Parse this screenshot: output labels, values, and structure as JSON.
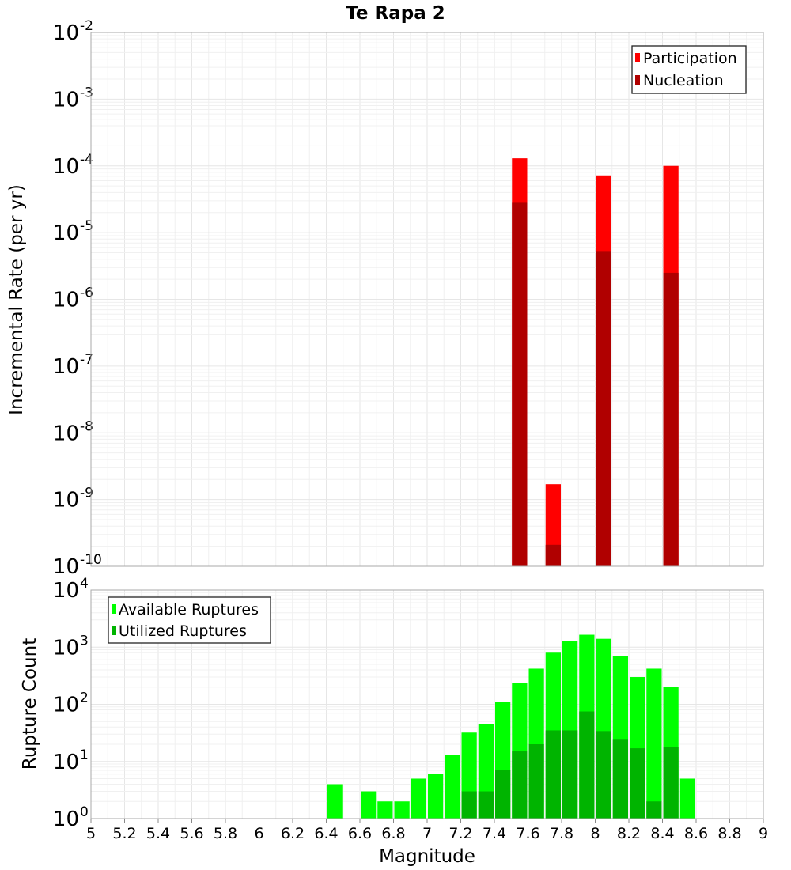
{
  "chart_data": [
    {
      "type": "bar",
      "title": "Te Rapa 2",
      "ylabel": "Incremental Rate (per yr)",
      "xlabel": "",
      "yscale": "log",
      "ylim_exponents": [
        -10,
        -2
      ],
      "xlim": [
        5,
        9
      ],
      "legend_position": "top-right",
      "legend": [
        "Participation",
        "Nucleation"
      ],
      "colors": {
        "Participation": "#ff0000",
        "Nucleation": "#b00000"
      },
      "x": [
        7.55,
        7.75,
        8.05,
        8.45
      ],
      "series": [
        {
          "name": "Participation",
          "values": [
            0.00013,
            1.7e-09,
            7.2e-05,
            0.0001
          ]
        },
        {
          "name": "Nucleation",
          "values": [
            2.8e-05,
            2.1e-10,
            5.3e-06,
            2.5e-06
          ]
        }
      ]
    },
    {
      "type": "bar",
      "title": "",
      "ylabel": "Rupture Count",
      "xlabel": "Magnitude",
      "yscale": "log",
      "ylim_exponents": [
        0,
        4
      ],
      "xlim": [
        5,
        9
      ],
      "legend_position": "top-left",
      "legend": [
        "Available Ruptures",
        "Utilized Ruptures"
      ],
      "colors": {
        "Available Ruptures": "#00ff00",
        "Utilized Ruptures": "#00b400"
      },
      "x": [
        6.45,
        6.65,
        6.75,
        6.85,
        6.95,
        7.05,
        7.15,
        7.25,
        7.35,
        7.45,
        7.55,
        7.65,
        7.75,
        7.85,
        7.95,
        8.05,
        8.15,
        8.25,
        8.35,
        8.45,
        8.55
      ],
      "series": [
        {
          "name": "Available Ruptures",
          "values": [
            4,
            3,
            2,
            2,
            5,
            6,
            13,
            32,
            45,
            110,
            240,
            420,
            800,
            1300,
            1650,
            1400,
            700,
            300,
            420,
            200,
            5
          ]
        },
        {
          "name": "Utilized Ruptures",
          "values": [
            0,
            0,
            0,
            0,
            0,
            0,
            0,
            3,
            3,
            7,
            15,
            20,
            35,
            35,
            75,
            34,
            24,
            17,
            2,
            18,
            0
          ]
        }
      ]
    }
  ],
  "x_ticks": [
    "5",
    "5.2",
    "5.4",
    "5.6",
    "5.8",
    "6",
    "6.2",
    "6.4",
    "6.6",
    "6.8",
    "7",
    "7.2",
    "7.4",
    "7.6",
    "7.8",
    "8",
    "8.2",
    "8.4",
    "8.6",
    "8.8",
    "9"
  ]
}
